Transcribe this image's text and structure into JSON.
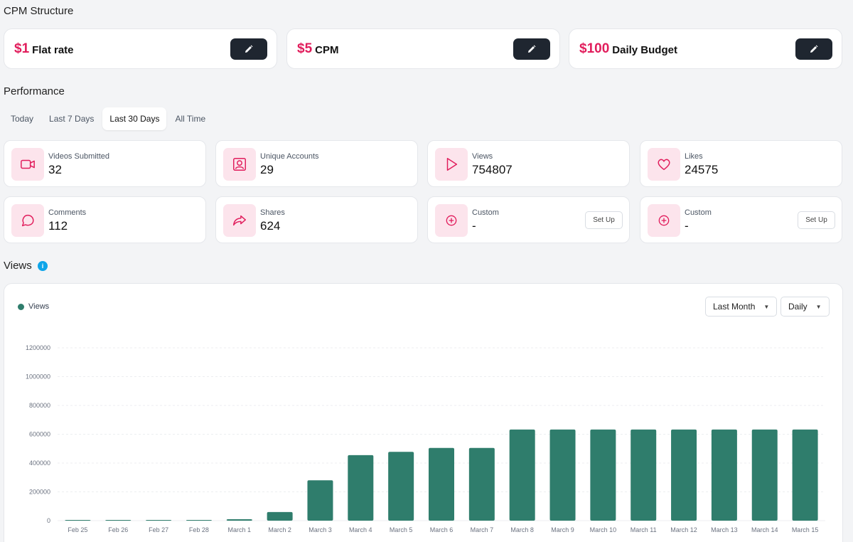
{
  "cpm_structure": {
    "title": "CPM Structure",
    "cards": [
      {
        "amount": "$1",
        "label": "Flat rate"
      },
      {
        "amount": "$5",
        "label": "CPM"
      },
      {
        "amount": "$100",
        "label": "Daily Budget"
      }
    ]
  },
  "performance": {
    "title": "Performance",
    "tabs": [
      "Today",
      "Last 7 Days",
      "Last 30 Days",
      "All Time"
    ],
    "active_tab": "Last 30 Days",
    "stats": [
      {
        "label": "Videos Submitted",
        "value": "32",
        "icon": "video-camera-icon"
      },
      {
        "label": "Unique Accounts",
        "value": "29",
        "icon": "user-account-icon"
      },
      {
        "label": "Views",
        "value": "754807",
        "icon": "play-icon"
      },
      {
        "label": "Likes",
        "value": "24575",
        "icon": "heart-icon"
      },
      {
        "label": "Comments",
        "value": "112",
        "icon": "comment-icon"
      },
      {
        "label": "Shares",
        "value": "624",
        "icon": "share-icon"
      },
      {
        "label": "Custom",
        "value": "-",
        "icon": "add-circle-icon",
        "action": "Set Up"
      },
      {
        "label": "Custom",
        "value": "-",
        "icon": "add-circle-icon",
        "action": "Set Up"
      }
    ]
  },
  "views_section": {
    "title": "Views",
    "info_glyph": "i",
    "legend": "Views",
    "period_dropdown": "Last Month",
    "interval_dropdown": "Daily"
  },
  "colors": {
    "accent": "#e11d5c",
    "bar": "#2f7d6c",
    "dark_button": "#1f2630"
  },
  "chart_data": {
    "type": "bar",
    "title": "Views",
    "categories": [
      "Feb 25",
      "Feb 26",
      "Feb 27",
      "Feb 28",
      "March 1",
      "March 2",
      "March 3",
      "March 4",
      "March 5",
      "March 6",
      "March 7",
      "March 8",
      "March 9",
      "March 10",
      "March 11",
      "March 12",
      "March 13",
      "March 14",
      "March 15"
    ],
    "series": [
      {
        "name": "Views",
        "values": [
          1000,
          1500,
          2500,
          5000,
          10000,
          60000,
          280000,
          455000,
          478000,
          505000,
          505000,
          633000,
          633000,
          633000,
          633000,
          633000,
          633000,
          633000,
          633000
        ]
      }
    ],
    "yticks": [
      0,
      200000,
      400000,
      600000,
      800000,
      1000000,
      1200000
    ],
    "ylim": [
      0,
      1200000
    ],
    "grid": true,
    "legend_position": "top-left"
  }
}
